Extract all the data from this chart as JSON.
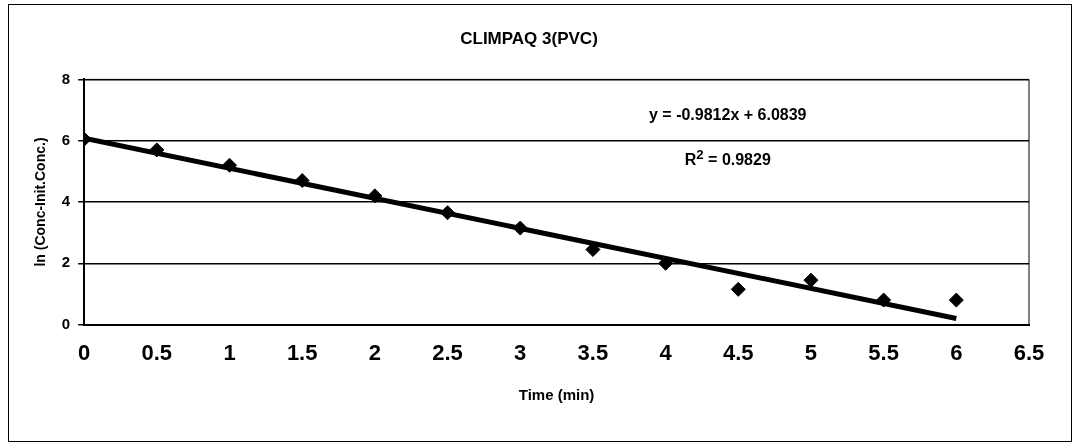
{
  "chart_data": {
    "type": "scatter",
    "title": "CLIMPAQ 3(PVC)",
    "xlabel": "Time (min)",
    "ylabel": "ln (Conc-Init.Conc.)",
    "series": [
      {
        "color": "#000000",
        "x": [
          0,
          0.5,
          1,
          1.5,
          2,
          2.5,
          3,
          3.5,
          4,
          4.5,
          5,
          5.5,
          6
        ],
        "values": [
          6.05,
          5.7,
          5.2,
          4.7,
          4.2,
          3.65,
          3.15,
          2.45,
          2.0,
          1.15,
          1.45,
          0.8,
          0.8
        ]
      },
      {
        "type": "line",
        "marker": "none",
        "color": "#000000",
        "x": [
          0,
          6
        ],
        "values": [
          6.08,
          0.2
        ]
      }
    ],
    "xlim": [
      0,
      6.5
    ],
    "xticks": [
      0,
      0.5,
      1,
      1.5,
      2,
      2.5,
      3,
      3.5,
      4,
      4.5,
      5,
      5.5,
      6,
      6.5
    ],
    "ylim": [
      0,
      8
    ],
    "yticks": [
      0,
      2,
      4,
      6,
      8
    ],
    "grid": "y",
    "legend": false,
    "marker": "diamond",
    "annotations": [
      "y = -0.9812x + 6.0839",
      "R$^{2}$ = 0.9829"
    ]
  }
}
